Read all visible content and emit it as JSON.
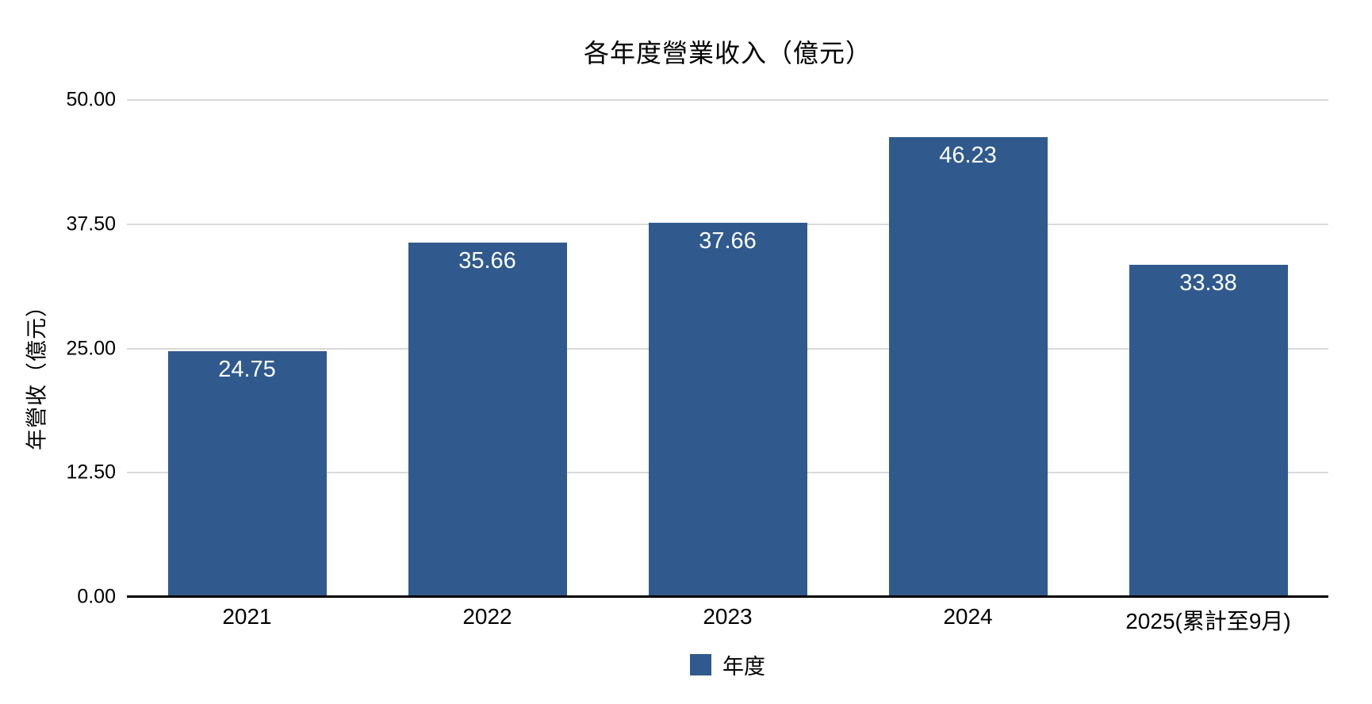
{
  "chart_data": {
    "type": "bar",
    "title": "各年度營業收入（億元）",
    "ylabel": "年營收（億元）",
    "xlabel": "",
    "categories": [
      "2021",
      "2022",
      "2023",
      "2024",
      "2025(累計至9月)"
    ],
    "series": [
      {
        "name": "年度",
        "values": [
          24.75,
          35.66,
          37.66,
          46.23,
          33.38
        ]
      }
    ],
    "value_labels": [
      "24.75",
      "35.66",
      "37.66",
      "46.23",
      "33.38"
    ],
    "ylim": [
      0,
      50
    ],
    "yticks": [
      {
        "value": 0,
        "label": "0.00"
      },
      {
        "value": 12.5,
        "label": "12.50"
      },
      {
        "value": 25,
        "label": "25.00"
      },
      {
        "value": 37.5,
        "label": "37.50"
      },
      {
        "value": 50,
        "label": "50.00"
      }
    ],
    "grid": "horizontal",
    "legend_position": "bottom",
    "colors": {
      "bar": "#305a8d",
      "gridline": "#d9d9d9",
      "axis_line": "#000000",
      "bar_label_text": "#ffffff",
      "text": "#000000",
      "background": "#ffffff"
    }
  }
}
